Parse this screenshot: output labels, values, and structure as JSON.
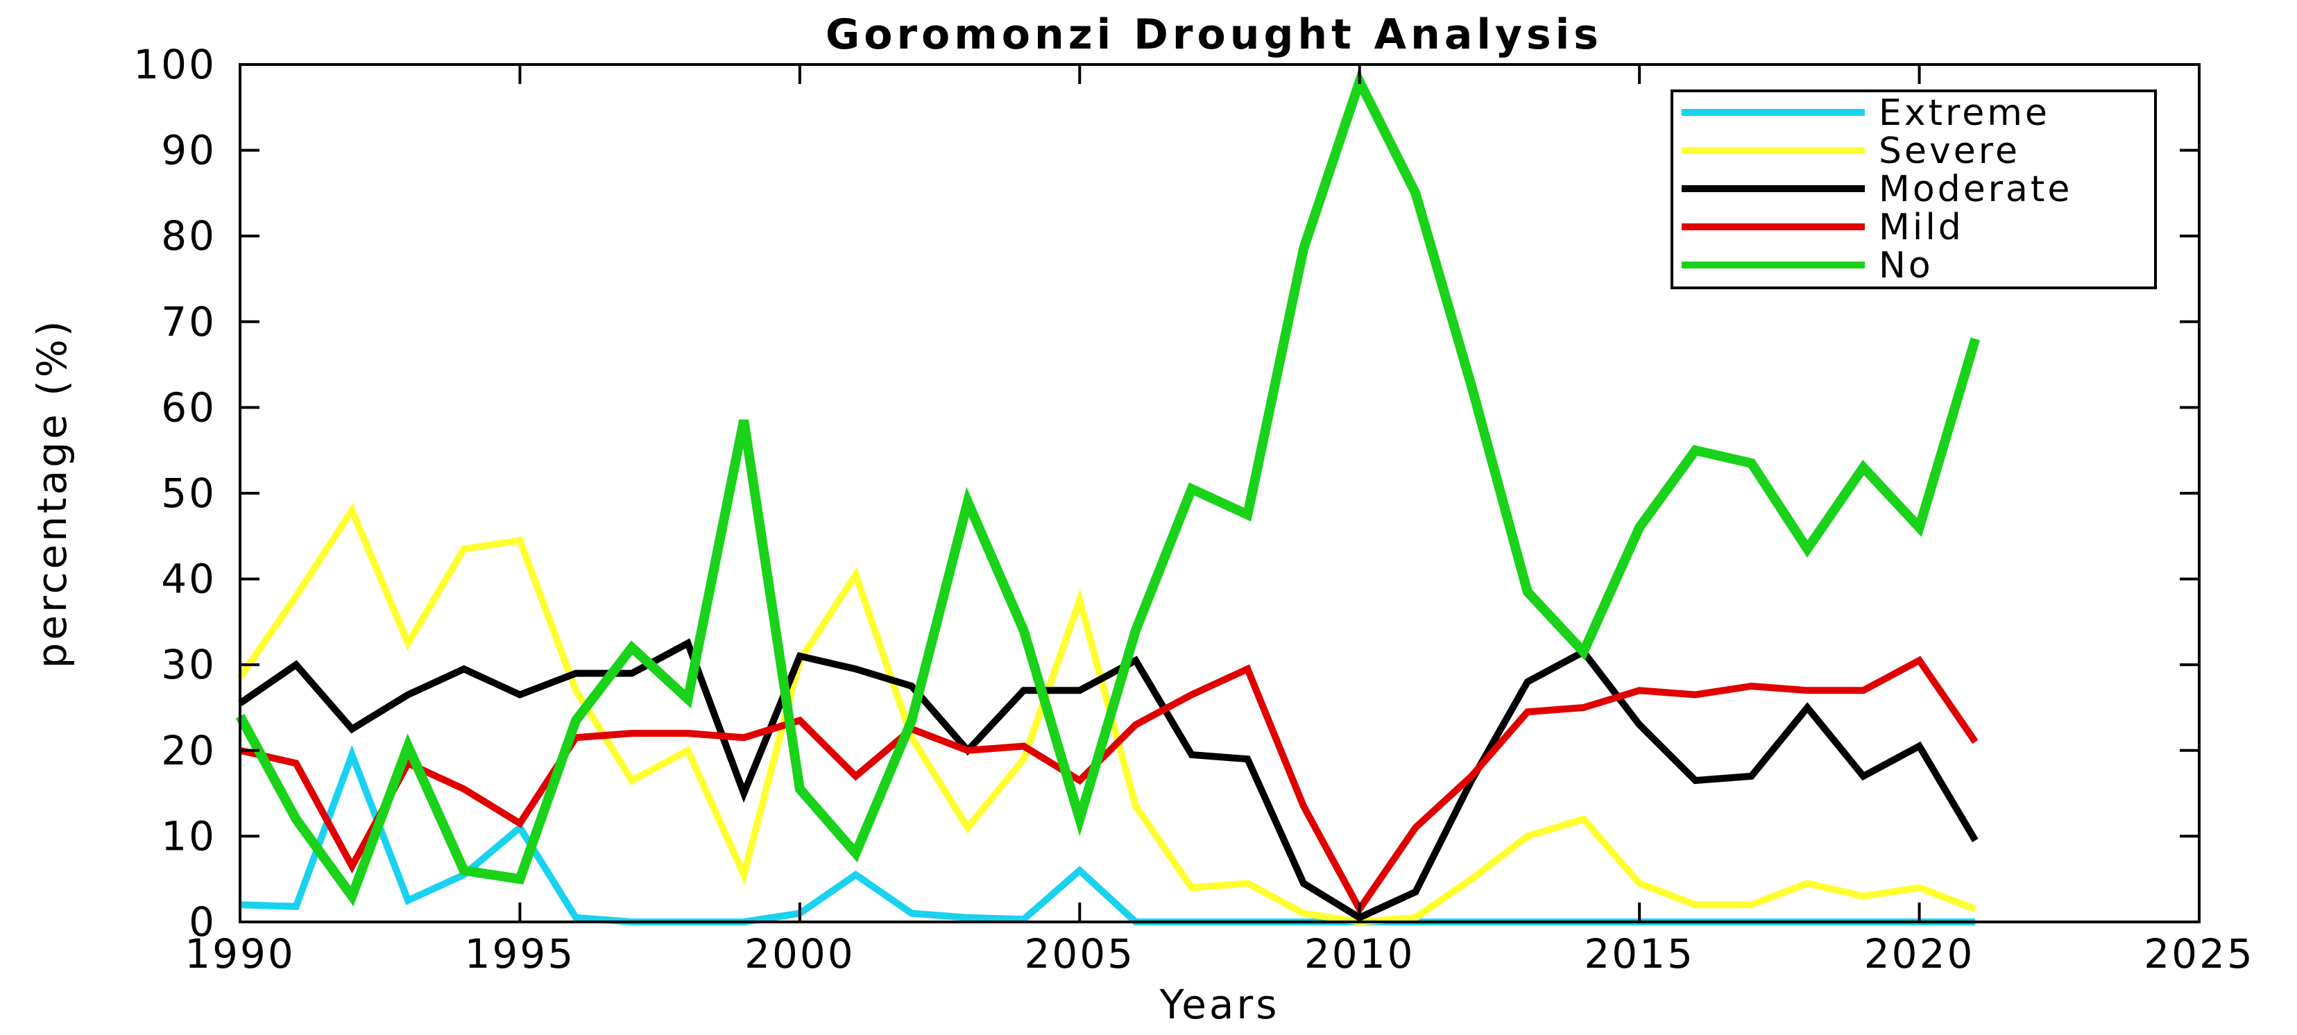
{
  "chart_data": {
    "type": "line",
    "title": "Goromonzi Drought Analysis",
    "xlabel": "Years",
    "ylabel": "percentage (%)",
    "xlim": [
      1990,
      2025
    ],
    "ylim": [
      0,
      100
    ],
    "xticks": [
      "1990",
      "1995",
      "2000",
      "2005",
      "2010",
      "2015",
      "2020",
      "2025"
    ],
    "yticks": [
      "0",
      "10",
      "20",
      "30",
      "40",
      "50",
      "60",
      "70",
      "80",
      "90",
      "100"
    ],
    "grid": false,
    "legend_position": "top-right",
    "x": [
      1990,
      1991,
      1992,
      1993,
      1994,
      1995,
      1996,
      1997,
      1998,
      1999,
      2000,
      2001,
      2002,
      2003,
      2004,
      2005,
      2006,
      2007,
      2008,
      2009,
      2010,
      2011,
      2012,
      2013,
      2014,
      2015,
      2016,
      2017,
      2018,
      2019,
      2020,
      2021
    ],
    "series": [
      {
        "name": "Extreme",
        "color": "#19d2f0",
        "values": [
          2,
          1.8,
          19.5,
          2.5,
          5.5,
          11,
          0.5,
          0,
          0,
          0,
          1,
          5.5,
          1,
          0.5,
          0.3,
          6,
          0,
          0,
          0,
          0,
          0,
          0,
          0,
          0,
          0,
          0,
          0,
          0,
          0,
          0,
          0,
          0
        ]
      },
      {
        "name": "Severe",
        "color": "#ffff30",
        "values": [
          28.5,
          38,
          48,
          32.5,
          43.5,
          44.5,
          27,
          16.5,
          20,
          5.5,
          30.5,
          40.5,
          21.5,
          11,
          19,
          37.5,
          13.5,
          4,
          4.5,
          1,
          0,
          0.5,
          5,
          10,
          12,
          4.5,
          2,
          2,
          4.5,
          3,
          4,
          1.5
        ]
      },
      {
        "name": "Moderate",
        "color": "#000000",
        "values": [
          25.5,
          30,
          22.5,
          26.5,
          29.5,
          26.5,
          29,
          29,
          32.5,
          15,
          31,
          29.5,
          27.5,
          20,
          27,
          27,
          30.5,
          19.5,
          19,
          4.5,
          0.5,
          3.5,
          16.5,
          28,
          31.5,
          23,
          16.5,
          17,
          25,
          17,
          20.5,
          9.5
        ]
      },
      {
        "name": "Mild",
        "color": "#e00000",
        "values": [
          20,
          18.5,
          6.5,
          18.5,
          15.5,
          11.5,
          21.5,
          22,
          22,
          21.5,
          23.5,
          17,
          22.5,
          20,
          20.5,
          16.5,
          23,
          26.5,
          29.5,
          13.5,
          1.5,
          11,
          17,
          24.5,
          25,
          27,
          26.5,
          27.5,
          27,
          27,
          30.5,
          21
        ]
      },
      {
        "name": "No",
        "color": "#19d219",
        "values": [
          24,
          12,
          3,
          20.5,
          6,
          5,
          23.5,
          32,
          26,
          58.5,
          15.5,
          8,
          23.5,
          49,
          34,
          12,
          34,
          50.5,
          47.5,
          78.5,
          98,
          85,
          62.5,
          38.5,
          31.5,
          46,
          55,
          53.5,
          43.5,
          53,
          46,
          68
        ]
      }
    ]
  }
}
